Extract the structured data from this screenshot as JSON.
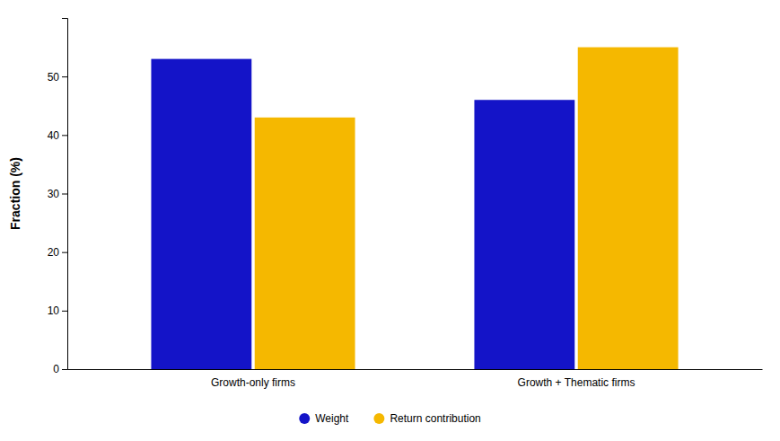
{
  "chart_data": {
    "type": "bar",
    "categories": [
      "Growth-only firms",
      "Growth + Thematic firms"
    ],
    "ylabel": "Fraction (%)",
    "series": [
      {
        "name": "Weight",
        "color": "#1414c8",
        "values": [
          53,
          46
        ]
      },
      {
        "name": "Return contribution",
        "color": "#F5B800",
        "values": [
          43,
          55
        ]
      }
    ],
    "ylim": [
      0,
      60
    ],
    "yticks": [
      0,
      10,
      20,
      30,
      40,
      50
    ],
    "grid": false,
    "legend": "bottom"
  }
}
